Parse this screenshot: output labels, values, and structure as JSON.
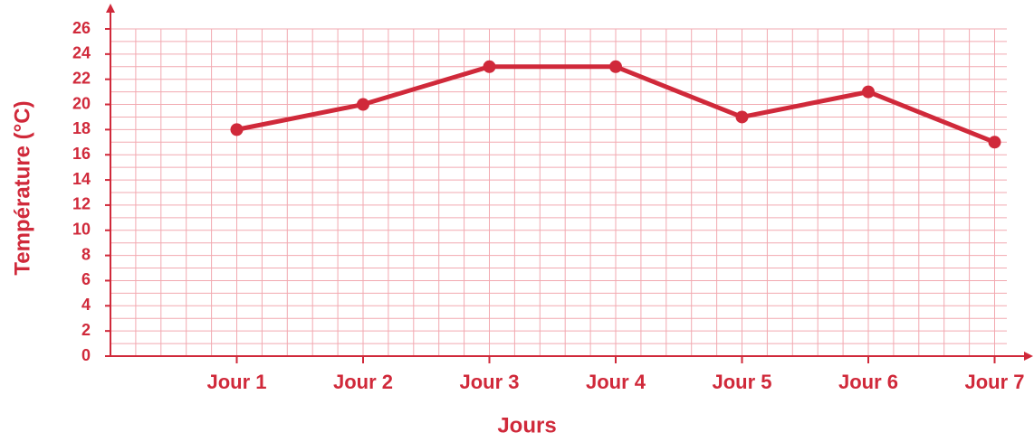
{
  "chart_data": {
    "type": "line",
    "xlabel": "Jours",
    "ylabel": "Température (°C)",
    "categories": [
      "Jour 1",
      "Jour 2",
      "Jour 3",
      "Jour 4",
      "Jour 5",
      "Jour 6",
      "Jour 7"
    ],
    "series": [
      {
        "name": "Température",
        "color": "#d0293a",
        "values": [
          18,
          20,
          23,
          23,
          19,
          21,
          17
        ]
      }
    ],
    "ylim": [
      0,
      26
    ],
    "yticks": [
      0,
      2,
      4,
      6,
      8,
      10,
      12,
      14,
      16,
      18,
      20,
      22,
      24,
      26
    ],
    "grid": true
  }
}
